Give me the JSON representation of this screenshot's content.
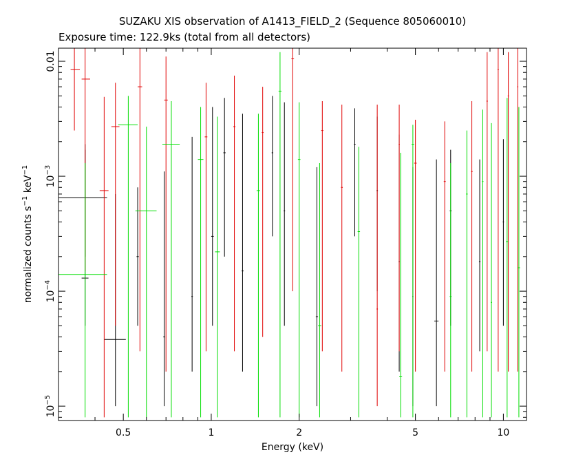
{
  "chart_data": {
    "type": "scatter",
    "title": "SUZAKU XIS observation of A1413_FIELD_2 (Sequence 805060010)",
    "subtitle": "Exposure time: 122.9ks (total from all detectors)",
    "xlabel": "Energy (keV)",
    "ylabel_main": "normalized counts s",
    "ylabel_mid": " keV",
    "ylabel_sup": "−1",
    "x_scale": "log",
    "y_scale": "log",
    "xlim": [
      0.3,
      12
    ],
    "ylim": [
      7.5e-06,
      0.013
    ],
    "x_ticks": [
      {
        "value": 0.5,
        "label": "0.5"
      },
      {
        "value": 1,
        "label": "1"
      },
      {
        "value": 2,
        "label": "2"
      },
      {
        "value": 5,
        "label": "5"
      },
      {
        "value": 10,
        "label": "10"
      }
    ],
    "y_ticks": [
      {
        "value": 0.01,
        "label": "0.01",
        "exp": ""
      },
      {
        "value": 0.001,
        "label": "10",
        "exp": "−3"
      },
      {
        "value": 0.0001,
        "label": "10",
        "exp": "−4"
      },
      {
        "value": 1e-05,
        "label": "10",
        "exp": "−5"
      }
    ],
    "grid": false,
    "legend": "none",
    "colors": {
      "black": "#000000",
      "red": "#e00000",
      "green": "#00dd00"
    },
    "series": [
      {
        "color": "black",
        "points": [
          {
            "x": 0.37,
            "xlo": 0.3,
            "xhi": 0.44,
            "y": 0.00065,
            "ylo": 0.0002,
            "yhi": 0.0017
          },
          {
            "x": 0.37,
            "xlo": 0.36,
            "xhi": 0.38,
            "y": 0.00013,
            "ylo": 5e-05,
            "yhi": 0.0019
          },
          {
            "x": 0.47,
            "xlo": 0.43,
            "xhi": 0.51,
            "y": 3.8e-05,
            "ylo": 1e-05,
            "yhi": 0.0007
          },
          {
            "x": 0.56,
            "xlo": 0.555,
            "xhi": 0.565,
            "y": 0.0002,
            "ylo": 5e-05,
            "yhi": 0.0008
          },
          {
            "x": 0.69,
            "xlo": 0.685,
            "xhi": 0.695,
            "y": 4e-05,
            "ylo": 1e-05,
            "yhi": 0.0011
          },
          {
            "x": 0.86,
            "xlo": 0.855,
            "xhi": 0.865,
            "y": 9e-05,
            "ylo": 2e-05,
            "yhi": 0.0022
          },
          {
            "x": 1.01,
            "xlo": 1.0,
            "xhi": 1.02,
            "y": 0.0003,
            "ylo": 5e-05,
            "yhi": 0.004
          },
          {
            "x": 1.11,
            "xlo": 1.1,
            "xhi": 1.12,
            "y": 0.0016,
            "ylo": 0.0002,
            "yhi": 0.0048
          },
          {
            "x": 1.28,
            "xlo": 1.27,
            "xhi": 1.29,
            "y": 0.00015,
            "ylo": 2e-05,
            "yhi": 0.0035
          },
          {
            "x": 1.62,
            "xlo": 1.61,
            "xhi": 1.63,
            "y": 0.0016,
            "ylo": 0.0003,
            "yhi": 0.005
          },
          {
            "x": 1.78,
            "xlo": 1.77,
            "xhi": 1.79,
            "y": 0.0005,
            "ylo": 5e-05,
            "yhi": 0.0044
          },
          {
            "x": 2.3,
            "xlo": 2.28,
            "xhi": 2.32,
            "y": 6e-05,
            "ylo": 1e-05,
            "yhi": 0.0012
          },
          {
            "x": 3.1,
            "xlo": 3.08,
            "xhi": 3.12,
            "y": 0.0019,
            "ylo": 0.0003,
            "yhi": 0.0039
          },
          {
            "x": 3.7,
            "xlo": 3.68,
            "xhi": 3.72,
            "y": 0.00075,
            "ylo": 0.0001,
            "yhi": 0.0033
          },
          {
            "x": 4.4,
            "xlo": 4.38,
            "xhi": 4.42,
            "y": 0.00018,
            "ylo": 2e-05,
            "yhi": 0.0023
          },
          {
            "x": 4.9,
            "xlo": 4.88,
            "xhi": 4.92,
            "y": 9e-05,
            "ylo": 1e-05,
            "yhi": 0.0012
          },
          {
            "x": 5.9,
            "xlo": 5.8,
            "xhi": 6.0,
            "y": 5.5e-05,
            "ylo": 1e-05,
            "yhi": 0.0014
          },
          {
            "x": 6.6,
            "xlo": 6.55,
            "xhi": 6.65,
            "y": 0.0005,
            "ylo": 5e-05,
            "yhi": 0.0017
          },
          {
            "x": 8.3,
            "xlo": 8.25,
            "xhi": 8.35,
            "y": 0.00018,
            "ylo": 3e-05,
            "yhi": 0.0014
          },
          {
            "x": 10.0,
            "xlo": 9.95,
            "xhi": 10.05,
            "y": 0.0004,
            "ylo": 5e-05,
            "yhi": 0.0021
          }
        ]
      },
      {
        "color": "red",
        "points": [
          {
            "x": 0.34,
            "xlo": 0.33,
            "xhi": 0.355,
            "y": 0.0085,
            "ylo": 0.0025,
            "yhi": 0.013
          },
          {
            "x": 0.37,
            "xlo": 0.36,
            "xhi": 0.385,
            "y": 0.007,
            "ylo": 0.00015,
            "yhi": 0.013
          },
          {
            "x": 0.43,
            "xlo": 0.415,
            "xhi": 0.445,
            "y": 0.00075,
            "ylo": 8e-06,
            "yhi": 0.0049
          },
          {
            "x": 0.47,
            "xlo": 0.455,
            "xhi": 0.485,
            "y": 0.0027,
            "ylo": 5e-05,
            "yhi": 0.0065
          },
          {
            "x": 0.57,
            "xlo": 0.56,
            "xhi": 0.58,
            "y": 0.006,
            "ylo": 3e-05,
            "yhi": 0.013
          },
          {
            "x": 0.7,
            "xlo": 0.69,
            "xhi": 0.71,
            "y": 0.0046,
            "ylo": 2e-05,
            "yhi": 0.011
          },
          {
            "x": 0.96,
            "xlo": 0.95,
            "xhi": 0.97,
            "y": 0.0022,
            "ylo": 3e-05,
            "yhi": 0.0065
          },
          {
            "x": 1.2,
            "xlo": 1.19,
            "xhi": 1.21,
            "y": 0.0027,
            "ylo": 3e-05,
            "yhi": 0.0075
          },
          {
            "x": 1.5,
            "xlo": 1.49,
            "xhi": 1.51,
            "y": 0.0024,
            "ylo": 4e-05,
            "yhi": 0.006
          },
          {
            "x": 1.9,
            "xlo": 1.88,
            "xhi": 1.92,
            "y": 0.0105,
            "ylo": 0.0001,
            "yhi": 0.013
          },
          {
            "x": 2.4,
            "xlo": 2.38,
            "xhi": 2.42,
            "y": 0.0025,
            "ylo": 3e-05,
            "yhi": 0.0045
          },
          {
            "x": 2.8,
            "xlo": 2.78,
            "xhi": 2.82,
            "y": 0.0008,
            "ylo": 2e-05,
            "yhi": 0.0042
          },
          {
            "x": 3.7,
            "xlo": 3.68,
            "xhi": 3.72,
            "y": 7e-05,
            "ylo": 1e-05,
            "yhi": 0.0042
          },
          {
            "x": 4.4,
            "xlo": 4.38,
            "xhi": 4.42,
            "y": 0.0019,
            "ylo": 3e-05,
            "yhi": 0.0042
          },
          {
            "x": 5.0,
            "xlo": 4.95,
            "xhi": 5.05,
            "y": 0.0013,
            "ylo": 2e-05,
            "yhi": 0.0031
          },
          {
            "x": 6.3,
            "xlo": 6.25,
            "xhi": 6.35,
            "y": 0.0009,
            "ylo": 2e-05,
            "yhi": 0.003
          },
          {
            "x": 7.8,
            "xlo": 7.75,
            "xhi": 7.85,
            "y": 0.0011,
            "ylo": 2e-05,
            "yhi": 0.0045
          },
          {
            "x": 8.8,
            "xlo": 8.75,
            "xhi": 8.85,
            "y": 0.0045,
            "ylo": 3e-05,
            "yhi": 0.012
          },
          {
            "x": 9.6,
            "xlo": 9.55,
            "xhi": 9.65,
            "y": 0.0085,
            "ylo": 2e-05,
            "yhi": 0.013
          },
          {
            "x": 10.4,
            "xlo": 10.35,
            "xhi": 10.45,
            "y": 0.005,
            "ylo": 2e-05,
            "yhi": 0.012
          },
          {
            "x": 11.2,
            "xlo": 11.15,
            "xhi": 11.25,
            "y": 0.006,
            "ylo": 2e-05,
            "yhi": 0.013
          }
        ]
      },
      {
        "color": "green",
        "points": [
          {
            "x": 0.37,
            "xlo": 0.3,
            "xhi": 0.44,
            "y": 0.00014,
            "ylo": 8e-06,
            "yhi": 0.0013
          },
          {
            "x": 0.52,
            "xlo": 0.48,
            "xhi": 0.56,
            "y": 0.0028,
            "ylo": 8e-06,
            "yhi": 0.005
          },
          {
            "x": 0.6,
            "xlo": 0.55,
            "xhi": 0.65,
            "y": 0.0005,
            "ylo": 8e-06,
            "yhi": 0.0027
          },
          {
            "x": 0.73,
            "xlo": 0.68,
            "xhi": 0.78,
            "y": 0.0019,
            "ylo": 8e-06,
            "yhi": 0.0045
          },
          {
            "x": 0.92,
            "xlo": 0.9,
            "xhi": 0.94,
            "y": 0.0014,
            "ylo": 8e-06,
            "yhi": 0.004
          },
          {
            "x": 1.05,
            "xlo": 1.03,
            "xhi": 1.07,
            "y": 0.00022,
            "ylo": 8e-06,
            "yhi": 0.0033
          },
          {
            "x": 1.45,
            "xlo": 1.43,
            "xhi": 1.47,
            "y": 0.00075,
            "ylo": 8e-06,
            "yhi": 0.0035
          },
          {
            "x": 1.72,
            "xlo": 1.7,
            "xhi": 1.74,
            "y": 0.0055,
            "ylo": 8e-06,
            "yhi": 0.012
          },
          {
            "x": 2.0,
            "xlo": 1.98,
            "xhi": 2.02,
            "y": 0.0014,
            "ylo": 8e-06,
            "yhi": 0.0044
          },
          {
            "x": 2.35,
            "xlo": 2.32,
            "xhi": 2.38,
            "y": 5e-05,
            "ylo": 8e-06,
            "yhi": 0.0013
          },
          {
            "x": 3.2,
            "xlo": 3.17,
            "xhi": 3.23,
            "y": 0.00033,
            "ylo": 8e-06,
            "yhi": 0.0018
          },
          {
            "x": 4.45,
            "xlo": 4.4,
            "xhi": 4.5,
            "y": 1.8e-05,
            "ylo": 8e-06,
            "yhi": 0.0016
          },
          {
            "x": 4.9,
            "xlo": 4.85,
            "xhi": 4.95,
            "y": 0.0019,
            "ylo": 8e-06,
            "yhi": 0.0028
          },
          {
            "x": 6.6,
            "xlo": 6.55,
            "xhi": 6.65,
            "y": 9e-05,
            "ylo": 8e-06,
            "yhi": 0.0013
          },
          {
            "x": 7.5,
            "xlo": 7.45,
            "xhi": 7.55,
            "y": 0.0007,
            "ylo": 8e-06,
            "yhi": 0.0025
          },
          {
            "x": 8.5,
            "xlo": 8.45,
            "xhi": 8.55,
            "y": 0.0009,
            "ylo": 8e-06,
            "yhi": 0.0038
          },
          {
            "x": 9.1,
            "xlo": 9.05,
            "xhi": 9.15,
            "y": 8e-05,
            "ylo": 8e-06,
            "yhi": 0.0029
          },
          {
            "x": 10.3,
            "xlo": 10.2,
            "xhi": 10.4,
            "y": 0.00027,
            "ylo": 8e-06,
            "yhi": 0.0048
          },
          {
            "x": 11.3,
            "xlo": 11.2,
            "xhi": 11.4,
            "y": 0.00016,
            "ylo": 8e-06,
            "yhi": 0.004
          }
        ]
      }
    ]
  }
}
